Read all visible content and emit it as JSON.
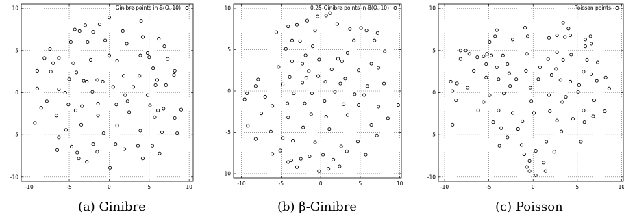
{
  "chart_data": [
    {
      "type": "scatter",
      "caption": "(a)  Ginibre",
      "legend": "Ginibre points in B(O, 10)",
      "xlim": [
        -11,
        10.5
      ],
      "ylim": [
        -10.5,
        10.5
      ],
      "xticks": [
        -10,
        -5,
        0,
        5,
        10
      ],
      "yticks": [
        -10,
        -5,
        0,
        5,
        10
      ],
      "grid": true,
      "legend_position": "top-right",
      "marker": "open-circle",
      "points": [
        [
          0,
          8.9
        ],
        [
          -1.2,
          8.1
        ],
        [
          -3,
          8
        ],
        [
          -3.7,
          7.3
        ],
        [
          -4.3,
          7.5
        ],
        [
          -2,
          7.2
        ],
        [
          1.7,
          7.3
        ],
        [
          4,
          8.5
        ],
        [
          6.2,
          6.4
        ],
        [
          4.2,
          6.6
        ],
        [
          -4.8,
          6
        ],
        [
          -2.7,
          6
        ],
        [
          -0.5,
          6.2
        ],
        [
          2.2,
          5.8
        ],
        [
          6.9,
          5.5
        ],
        [
          -7.4,
          5.2
        ],
        [
          -8.1,
          4.1
        ],
        [
          -6.3,
          4.1
        ],
        [
          -7,
          3.5
        ],
        [
          -4.5,
          3.5
        ],
        [
          -2.3,
          3.9
        ],
        [
          0,
          4.4
        ],
        [
          1,
          3.8
        ],
        [
          3.9,
          4.4
        ],
        [
          4.8,
          4.7
        ],
        [
          5,
          4.2
        ],
        [
          7.3,
          4
        ],
        [
          -9,
          2.6
        ],
        [
          -7.3,
          2.5
        ],
        [
          -4.1,
          2.4
        ],
        [
          5.5,
          2.9
        ],
        [
          8.2,
          2.6
        ],
        [
          -5,
          1.6
        ],
        [
          -1.5,
          1.5
        ],
        [
          -0.8,
          1.3
        ],
        [
          1.8,
          2
        ],
        [
          3.8,
          2
        ],
        [
          6,
          1.5
        ],
        [
          8.1,
          2.1
        ],
        [
          -9,
          0.5
        ],
        [
          -6.3,
          0.4
        ],
        [
          -3.2,
          1.4
        ],
        [
          -2.8,
          1.3
        ],
        [
          0.5,
          0.7
        ],
        [
          3,
          0.7
        ],
        [
          5.8,
          0.9
        ],
        [
          7.1,
          0.9
        ],
        [
          -5.5,
          0
        ],
        [
          -2.1,
          0.1
        ],
        [
          2,
          -0.3
        ],
        [
          4.8,
          -0.3
        ],
        [
          -8.5,
          -1.8
        ],
        [
          -7.8,
          -1
        ],
        [
          -5.1,
          -1.4
        ],
        [
          -3.4,
          -1.6
        ],
        [
          -1.4,
          -1.3
        ],
        [
          0.9,
          -1.4
        ],
        [
          2.3,
          -1
        ],
        [
          5.1,
          -1.5
        ],
        [
          6.1,
          -2.1
        ],
        [
          6.8,
          -1.9
        ],
        [
          9,
          -2
        ],
        [
          -6.6,
          -2.7
        ],
        [
          -4.2,
          -2.1
        ],
        [
          -1.4,
          -2.7
        ],
        [
          2.5,
          -2.3
        ],
        [
          5.7,
          -2.9
        ],
        [
          8.2,
          -3
        ],
        [
          -9.3,
          -3.6
        ],
        [
          -3.5,
          -3.8
        ],
        [
          1,
          -3.9
        ],
        [
          -5.4,
          -4.4
        ],
        [
          -0.7,
          -4.8
        ],
        [
          3.9,
          -4.5
        ],
        [
          6.6,
          -4.7
        ],
        [
          8.5,
          -4.8
        ],
        [
          -6.3,
          -5.3
        ],
        [
          -2,
          -6.1
        ],
        [
          0.8,
          -6.1
        ],
        [
          -4.7,
          -6.4
        ],
        [
          3.6,
          -6.3
        ],
        [
          5.4,
          -6.3
        ],
        [
          -6.5,
          -6.8
        ],
        [
          -4,
          -7.1
        ],
        [
          1.9,
          -6.7
        ],
        [
          -3.8,
          -7.8
        ],
        [
          -1.5,
          -7
        ],
        [
          4.2,
          -7.8
        ],
        [
          6.3,
          -7.2
        ],
        [
          -2.8,
          -8.2
        ],
        [
          0.1,
          -8.9
        ]
      ]
    },
    {
      "type": "scatter",
      "caption": "(b)  β-Ginibre",
      "legend": "0.25-Ginibre points in B(O, 10)",
      "xlim": [
        -11,
        10.2
      ],
      "ylim": [
        -10.5,
        10.5
      ],
      "xticks": [
        -10,
        -5,
        0,
        5,
        10
      ],
      "yticks": [
        -10,
        -5,
        0,
        5,
        10
      ],
      "grid": true,
      "legend_position": "top-right",
      "marker": "open-circle",
      "points": [
        [
          0.7,
          9.1
        ],
        [
          1.2,
          9.4
        ],
        [
          -0.4,
          9
        ],
        [
          -1.7,
          8.5
        ],
        [
          -3,
          8
        ],
        [
          2.1,
          8.1
        ],
        [
          -4.1,
          7.8
        ],
        [
          -5.6,
          7.1
        ],
        [
          -0.7,
          7.3
        ],
        [
          3.7,
          7.5
        ],
        [
          5.1,
          7.6
        ],
        [
          5.8,
          7.3
        ],
        [
          7.2,
          7
        ],
        [
          -3.6,
          6.1
        ],
        [
          -2.6,
          6
        ],
        [
          -1,
          5.4
        ],
        [
          4.2,
          6.1
        ],
        [
          6.8,
          6.1
        ],
        [
          -4.4,
          5.1
        ],
        [
          -1.9,
          4.3
        ],
        [
          2.2,
          3.9
        ],
        [
          3.4,
          4.6
        ],
        [
          8.1,
          4.8
        ],
        [
          -3.6,
          3.6
        ],
        [
          -2.3,
          3.3
        ],
        [
          -0.2,
          3.8
        ],
        [
          2.7,
          3.6
        ],
        [
          6.4,
          3.3
        ],
        [
          -5.3,
          2.9
        ],
        [
          -1.5,
          2.4
        ],
        [
          1.4,
          2.6
        ],
        [
          4.8,
          2.5
        ],
        [
          7.3,
          2.8
        ],
        [
          -3.9,
          1.7
        ],
        [
          -1.8,
          1.6
        ],
        [
          -0.3,
          1.8
        ],
        [
          3.1,
          1.5
        ],
        [
          -7.9,
          1.4
        ],
        [
          -8.2,
          0.6
        ],
        [
          -4.8,
          0.8
        ],
        [
          -2.3,
          1
        ],
        [
          0.6,
          1.1
        ],
        [
          2.5,
          0.9
        ],
        [
          5.9,
          0.6
        ],
        [
          8,
          0.9
        ],
        [
          -7,
          -0.7
        ],
        [
          -3.4,
          -0.3
        ],
        [
          -1.1,
          -0.3
        ],
        [
          1.8,
          -0.1
        ],
        [
          4.3,
          -0.4
        ],
        [
          5.5,
          -0.5
        ],
        [
          -6.1,
          -1.8
        ],
        [
          -4.2,
          -1.5
        ],
        [
          -2,
          -1.5
        ],
        [
          0.5,
          -1.2
        ],
        [
          2.9,
          -1.6
        ],
        [
          4.8,
          -1.7
        ],
        [
          7.3,
          -1.9
        ],
        [
          9.8,
          -1.7
        ],
        [
          -9.6,
          -1
        ],
        [
          -9.3,
          -0.3
        ],
        [
          -7.5,
          -2.7
        ],
        [
          -4.1,
          -3.2
        ],
        [
          -1.2,
          -2.8
        ],
        [
          0.7,
          -3.1
        ],
        [
          3.4,
          -2.9
        ],
        [
          8.5,
          -3.3
        ],
        [
          -9.2,
          -4.2
        ],
        [
          -6.3,
          -4.9
        ],
        [
          -4.8,
          -5.7
        ],
        [
          -2.2,
          -4.4
        ],
        [
          1.1,
          -4.6
        ],
        [
          6.4,
          -4.1
        ],
        [
          -8.2,
          -5.8
        ],
        [
          -3.5,
          -6
        ],
        [
          -0.7,
          -6.2
        ],
        [
          2.6,
          -6.7
        ],
        [
          4.7,
          -6.1
        ],
        [
          7.1,
          -5.4
        ],
        [
          -5.1,
          -7.2
        ],
        [
          -1.4,
          -7.9
        ],
        [
          0.3,
          -7.7
        ],
        [
          3.3,
          -7.3
        ],
        [
          5.7,
          -7.7
        ],
        [
          -6.1,
          -7.6
        ],
        [
          -3.7,
          -8.4
        ],
        [
          -2.5,
          -8.2
        ],
        [
          1.6,
          -8.3
        ],
        [
          2.4,
          -9.1
        ],
        [
          -4.1,
          -8.6
        ],
        [
          -3,
          -9.2
        ],
        [
          -0.2,
          -9.7
        ],
        [
          1,
          -9.4
        ]
      ]
    },
    {
      "type": "scatter",
      "caption": "(c)  Poisson",
      "legend": "Poisson points",
      "xlim": [
        -10.7,
        10.2
      ],
      "ylim": [
        -10.5,
        10.5
      ],
      "xticks": [
        -10,
        -5,
        0,
        5,
        10
      ],
      "yticks": [
        -10,
        -5,
        0,
        5,
        10
      ],
      "grid": true,
      "legend_position": "top-right",
      "marker": "open-circle",
      "points": [
        [
          3.4,
          8.3
        ],
        [
          4,
          7.6
        ],
        [
          -0.9,
          7.7
        ],
        [
          -4.3,
          6.7
        ],
        [
          -4.1,
          7.4
        ],
        [
          -0.6,
          6.7
        ],
        [
          1.8,
          6.5
        ],
        [
          6.5,
          6.7
        ],
        [
          5.9,
          6.3
        ],
        [
          -2.3,
          6.3
        ],
        [
          2.7,
          6.8
        ],
        [
          3.6,
          6.6
        ],
        [
          4.2,
          6.8
        ],
        [
          -4.9,
          6
        ],
        [
          6.6,
          5.8
        ],
        [
          -7.6,
          5
        ],
        [
          -8.2,
          5
        ],
        [
          -7.2,
          4.6
        ],
        [
          -5.2,
          4.6
        ],
        [
          -0.7,
          4.6
        ],
        [
          2.7,
          4.8
        ],
        [
          4.3,
          4.5
        ],
        [
          5.9,
          5.5
        ],
        [
          -8.2,
          4
        ],
        [
          -6.3,
          4.2
        ],
        [
          -5.6,
          4.3
        ],
        [
          -4.7,
          4.4
        ],
        [
          -3.4,
          4.4
        ],
        [
          -2.9,
          3.4
        ],
        [
          1.7,
          4
        ],
        [
          3.4,
          3.9
        ],
        [
          6.1,
          3.9
        ],
        [
          -5.3,
          3.4
        ],
        [
          -4.1,
          3
        ],
        [
          0.8,
          3
        ],
        [
          2.6,
          2.8
        ],
        [
          7.3,
          3.6
        ],
        [
          -6.7,
          2.6
        ],
        [
          -2.7,
          2.3
        ],
        [
          -0.8,
          2.6
        ],
        [
          2.1,
          2.1
        ],
        [
          5.7,
          2.5
        ],
        [
          6.6,
          2.2
        ],
        [
          8.2,
          1.8
        ],
        [
          -5.3,
          1.8
        ],
        [
          -3.9,
          1.6
        ],
        [
          -1.9,
          1.6
        ],
        [
          0.6,
          1.6
        ],
        [
          3.1,
          1.5
        ],
        [
          4.2,
          1.3
        ],
        [
          7.2,
          1.4
        ],
        [
          -9.3,
          1.3
        ],
        [
          -8.6,
          1.1
        ],
        [
          -7.4,
          0.6
        ],
        [
          -2.6,
          0.8
        ],
        [
          -0.3,
          0.6
        ],
        [
          5.2,
          0.9
        ],
        [
          8.6,
          0.5
        ],
        [
          -9.1,
          0.2
        ],
        [
          -4.9,
          -0.3
        ],
        [
          -3.3,
          -0.1
        ],
        [
          1.8,
          -0.3
        ],
        [
          3.7,
          -0.5
        ],
        [
          5.1,
          0.1
        ],
        [
          -8.7,
          -0.9
        ],
        [
          -5.6,
          -1.1
        ],
        [
          -0.2,
          -1
        ],
        [
          3.3,
          -1.1
        ],
        [
          6.9,
          -0.9
        ],
        [
          -6.2,
          -2.1
        ],
        [
          -3.9,
          -2.1
        ],
        [
          -2.3,
          -2.4
        ],
        [
          0.1,
          -2.4
        ],
        [
          1.9,
          -2.2
        ],
        [
          5.7,
          -2.1
        ],
        [
          8.1,
          -2.2
        ],
        [
          -9.1,
          -3.8
        ],
        [
          -4.5,
          -3.5
        ],
        [
          -1.2,
          -3.4
        ],
        [
          2.7,
          -3.3
        ],
        [
          4.5,
          -3.1
        ],
        [
          5.8,
          -3.5
        ],
        [
          6.8,
          -2.8
        ],
        [
          -3.6,
          -4.2
        ],
        [
          -1.7,
          -4.3
        ],
        [
          3.2,
          -4.6
        ],
        [
          -2.9,
          -5.3
        ],
        [
          -1.3,
          -6.2
        ],
        [
          1.5,
          -5.8
        ],
        [
          5.4,
          -5.8
        ],
        [
          -3.8,
          -6.3
        ],
        [
          0.3,
          -6.9
        ],
        [
          2.4,
          -7
        ],
        [
          -1,
          -7.3
        ],
        [
          -0.4,
          -8.1
        ],
        [
          1.2,
          -8.3
        ],
        [
          -0.7,
          -8.8
        ],
        [
          -0.4,
          -9.3
        ],
        [
          1.4,
          -9.3
        ],
        [
          0.3,
          -9.8
        ]
      ]
    }
  ]
}
